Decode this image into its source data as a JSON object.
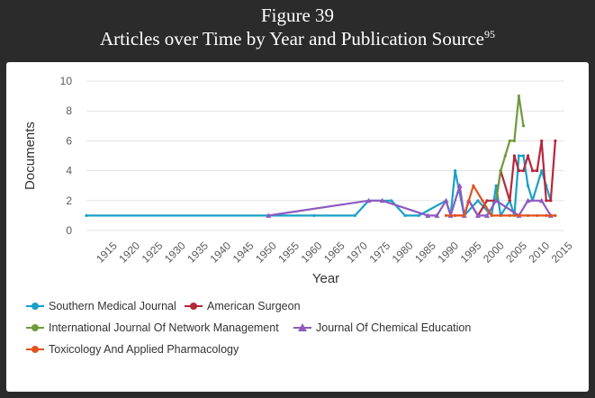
{
  "figure": {
    "title": "Figure 39",
    "subtitle": "Articles over Time by Year and Publication Source",
    "footnote": "95"
  },
  "chart_data": {
    "type": "line",
    "xlabel": "Year",
    "ylabel": "Documents",
    "xlim": [
      1910,
      2015
    ],
    "ylim": [
      0,
      10
    ],
    "xticks": [
      1915,
      1920,
      1925,
      1930,
      1935,
      1940,
      1945,
      1950,
      1955,
      1960,
      1965,
      1970,
      1975,
      1980,
      1985,
      1990,
      1995,
      2000,
      2005,
      2010,
      2015
    ],
    "yticks": [
      0,
      2,
      4,
      6,
      8,
      10
    ],
    "grid": "horizontal",
    "legend_position": "bottom",
    "series": [
      {
        "name": "Southern Medical Journal",
        "color": "#1aa0c8",
        "marker": "circle",
        "x": [
          1910,
          1950,
          1960,
          1969,
          1972,
          1977,
          1980,
          1983,
          1989,
          1990,
          1991,
          1993,
          1996,
          1999,
          2000,
          2001,
          2003,
          2004,
          2005,
          2006,
          2007,
          2008,
          2010,
          2011,
          2012
        ],
        "y": [
          1,
          1,
          1,
          1,
          2,
          2,
          1,
          1,
          2,
          1,
          4,
          1,
          2,
          1,
          3,
          1,
          2,
          1,
          5,
          5,
          3,
          2,
          4,
          3,
          2
        ]
      },
      {
        "name": "American Surgeon",
        "color": "#b5273a",
        "marker": "circle",
        "x": [
          1991,
          1993,
          1994,
          1996,
          1998,
          2000,
          2001,
          2003,
          2004,
          2005,
          2006,
          2007,
          2008,
          2009,
          2010,
          2011,
          2012,
          2013
        ],
        "y": [
          1,
          1,
          2,
          1,
          2,
          2,
          4,
          2,
          5,
          4,
          4,
          5,
          4,
          4,
          6,
          2,
          2,
          6
        ]
      },
      {
        "name": "International Journal Of Network Management",
        "color": "#6f9a3c",
        "marker": "circle",
        "x": [
          2000,
          2001,
          2002,
          2003,
          2004,
          2005,
          2006
        ],
        "y": [
          2,
          4,
          5,
          6,
          6,
          9,
          7
        ]
      },
      {
        "name": "Journal Of Chemical Education",
        "color": "#8e5bbf",
        "marker": "triangle",
        "x": [
          1950,
          1972,
          1975,
          1985,
          1987,
          1989,
          1990,
          1992,
          1993,
          1994,
          1996,
          1998,
          2000,
          2005,
          2007,
          2010,
          2012
        ],
        "y": [
          1,
          2,
          2,
          1,
          1,
          2,
          1,
          3,
          1,
          2,
          1,
          1,
          2,
          1,
          2,
          2,
          1
        ]
      },
      {
        "name": "Toxicology And Applied Pharmacology",
        "color": "#e2531f",
        "marker": "circle",
        "x": [
          1989,
          1993,
          1995,
          1997,
          1999,
          2001,
          2003,
          2005,
          2007,
          2009,
          2011,
          2013
        ],
        "y": [
          1,
          1,
          3,
          2,
          1,
          1,
          1,
          1,
          1,
          1,
          1,
          1
        ]
      }
    ]
  }
}
